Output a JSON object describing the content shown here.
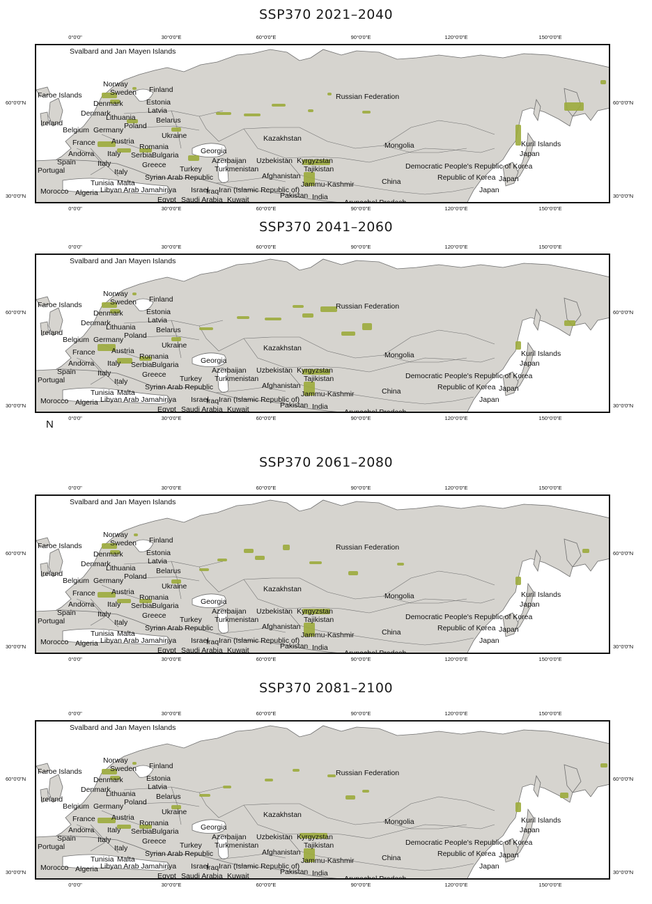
{
  "panels": [
    {
      "title": "SSP370 2021–2040"
    },
    {
      "title": "SSP370 2041–2060"
    },
    {
      "title": "SSP370 2061–2080"
    },
    {
      "title": "SSP370 2081–2100"
    }
  ],
  "longitude_labels": [
    "0°0'0\"",
    "30°0'0\"E",
    "60°0'0\"E",
    "90°0'0\"E",
    "120°0'0\"E",
    "150°0'0\"E"
  ],
  "latitude_labels": [
    "60°0'0\"N",
    "30°0'0\"N"
  ],
  "north_arrow_label": "N",
  "country_labels": [
    "Svalbard and Jan Mayen Islands",
    "Norway",
    "Sweden",
    "Finland",
    "Faroe Islands",
    "Denmark",
    "Estonia",
    "Russian Federation",
    "Denmark",
    "Latvia",
    "Lithuania",
    "Ireland",
    "Belarus",
    "Poland",
    "Belgium",
    "Germany",
    "Ukraine",
    "France",
    "Austria",
    "Kazakhstan",
    "Romania",
    "Andorra",
    "Italy",
    "Georgia",
    "Serbia",
    "Bulgaria",
    "Mongolia",
    "Kuril Islands",
    "Spain",
    "Italy",
    "Azerbaijan",
    "Uzbekistan",
    "Kyrgyzstan",
    "Japan",
    "Portugal",
    "Greece",
    "Turkey",
    "Turkmenistan",
    "Tajikistan",
    "Democratic People's Republic of Korea",
    "Italy",
    "Syrian Arab Republic",
    "Afghanistan",
    "Tunisia",
    "Malta",
    "Jammu-Kashmir",
    "China",
    "Republic of Korea",
    "Japan",
    "Morocco",
    "Algeria",
    "Libyan Arab Jamahiriya",
    "Israel",
    "Iraq",
    "Iran (Islamic Republic of)",
    "Japan",
    "Pakistan",
    "India",
    "Egypt",
    "Saudi Arabia",
    "Kuwait",
    "Arunachal Pradesh"
  ],
  "colors": {
    "land": "#d6d4cf",
    "border": "#6e6e6e",
    "suitable_habitat": "#9cab3c",
    "ocean": "#ffffff",
    "frame": "#111111"
  },
  "map": {
    "projection": "geographic",
    "lon_range": [
      -20,
      176
    ],
    "lat_range": [
      28,
      82
    ],
    "graticule": "edge ticks only"
  }
}
